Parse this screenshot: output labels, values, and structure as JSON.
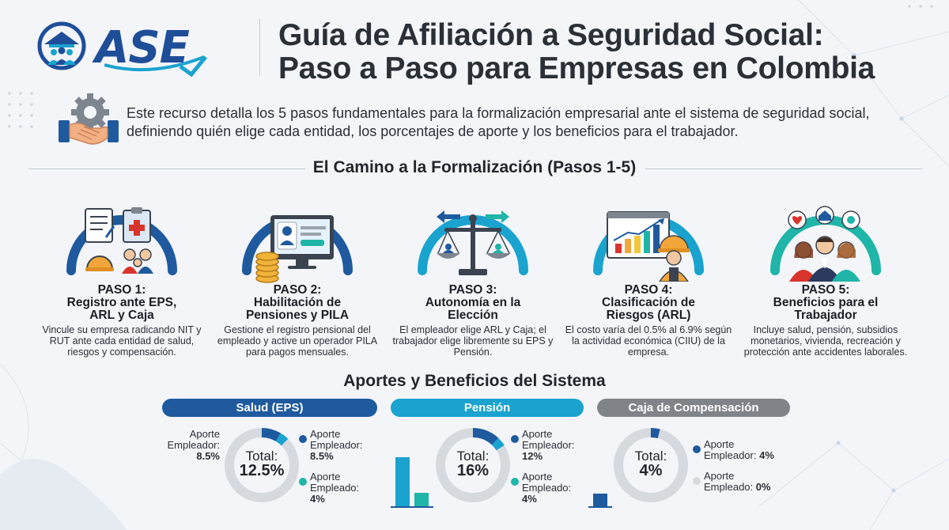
{
  "brand": {
    "logo_text": "ASE"
  },
  "title_line1": "Guía de Afiliación a Seguridad Social:",
  "title_line2": "Paso a Paso para Empresas en Colombia",
  "intro": "Este recurso detalla los 5 pasos fundamentales para la formalización empresarial ante el sistema de seguridad social, definiendo quién elige cada entidad, los porcentajes de aporte y los beneficios para el trabajador.",
  "steps_heading": "El Camino a la Formalización (Pasos 1-5)",
  "steps": [
    {
      "label": "PASO 1:",
      "title_a": "Registro ante EPS,",
      "title_b": "ARL y Caja",
      "desc": "Vincule su empresa radicando NIT y RUT ante cada entidad de salud, riesgos y compensación."
    },
    {
      "label": "PASO 2:",
      "title_a": "Habilitación de",
      "title_b": "Pensiones y PILA",
      "desc": "Gestione el registro pensional del empleado y active un operador PILA para pagos mensuales."
    },
    {
      "label": "PASO 3:",
      "title_a": "Autonomía en la",
      "title_b": "Elección",
      "desc": "El empleador elige ARL y Caja; el trabajador elige libremente su EPS y Pensión."
    },
    {
      "label": "PASO 4:",
      "title_a": "Clasificación de",
      "title_b": "Riesgos (ARL)",
      "desc": "El costo varía del 0.5% al 6.9% según la actividad económica (CIIU) de la empresa."
    },
    {
      "label": "PASO 5:",
      "title_a": "Beneficios para el",
      "title_b": "Trabajador",
      "desc": "Incluye salud, pensión, subsidios monetarios, vivienda, recreación y protección ante accidentes laborales."
    }
  ],
  "contrib_heading": "Aportes y Beneficios del Sistema",
  "colors": {
    "salud": "#1f5a9e",
    "pension": "#1aa3cf",
    "caja": "#808489",
    "teal": "#1fb5a8",
    "ring": "#d6d9de"
  },
  "contributions": {
    "salud": {
      "label": "Salud (EPS)",
      "total_label": "Total:",
      "total": "12.5%",
      "left_title_a": "Aporte",
      "left_title_b": "Empleador:",
      "left_value": "8.5%",
      "emp_title_a": "Aporte",
      "emp_title_b": "Empleador:",
      "emp_value": "8.5%",
      "wk_title_a": "Aporte",
      "wk_title_b": "Empleado:",
      "wk_value": "4%"
    },
    "pension": {
      "label": "Pensión",
      "total_label": "Total:",
      "total": "16%",
      "emp_title_a": "Aporte",
      "emp_title_b": "Empleador:",
      "emp_value": "12%",
      "wk_title_a": "Aporte",
      "wk_title_b": "Empleado:",
      "wk_value": "4%"
    },
    "caja": {
      "label": "Caja de Compensación",
      "total_label": "Total:",
      "total": "4%",
      "emp_title_a": "Aporte",
      "emp_title_b": "Empleador:",
      "emp_value": "4%",
      "wk_title_a": "Aporte",
      "wk_title_b": "Empleado:",
      "wk_value": "0%"
    }
  }
}
